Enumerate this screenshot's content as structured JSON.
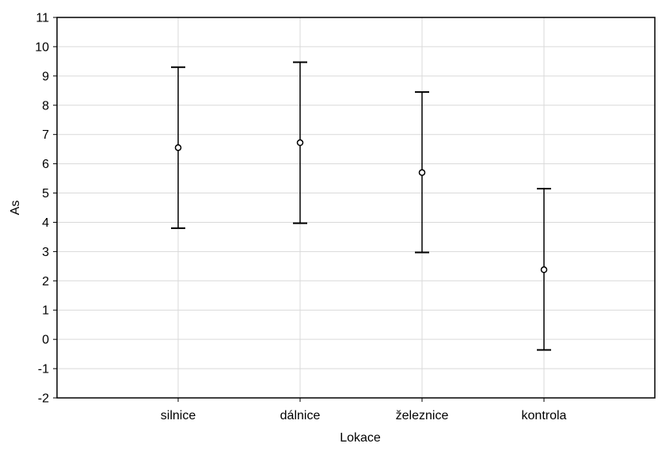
{
  "chart_data": {
    "type": "scatter",
    "title": "",
    "xlabel": "Lokace",
    "ylabel": "As",
    "ylim": [
      -2,
      11
    ],
    "y_ticks": [
      "-2",
      "-1",
      "0",
      "1",
      "2",
      "3",
      "4",
      "5",
      "6",
      "7",
      "8",
      "9",
      "10",
      "11"
    ],
    "grid": true,
    "categories": [
      "silnice",
      "dálnice",
      "železnice",
      "kontrola"
    ],
    "points": [
      {
        "category": "silnice",
        "mean": 6.55,
        "lower": 3.8,
        "upper": 9.3
      },
      {
        "category": "dálnice",
        "mean": 6.72,
        "lower": 3.97,
        "upper": 9.47
      },
      {
        "category": "železnice",
        "mean": 5.7,
        "lower": 2.97,
        "upper": 8.45
      },
      {
        "category": "kontrola",
        "mean": 2.38,
        "lower": -0.36,
        "upper": 5.15
      }
    ],
    "colors": {
      "marks": "#000000",
      "grid": "#d9d9d9",
      "axis": "#000000"
    }
  }
}
